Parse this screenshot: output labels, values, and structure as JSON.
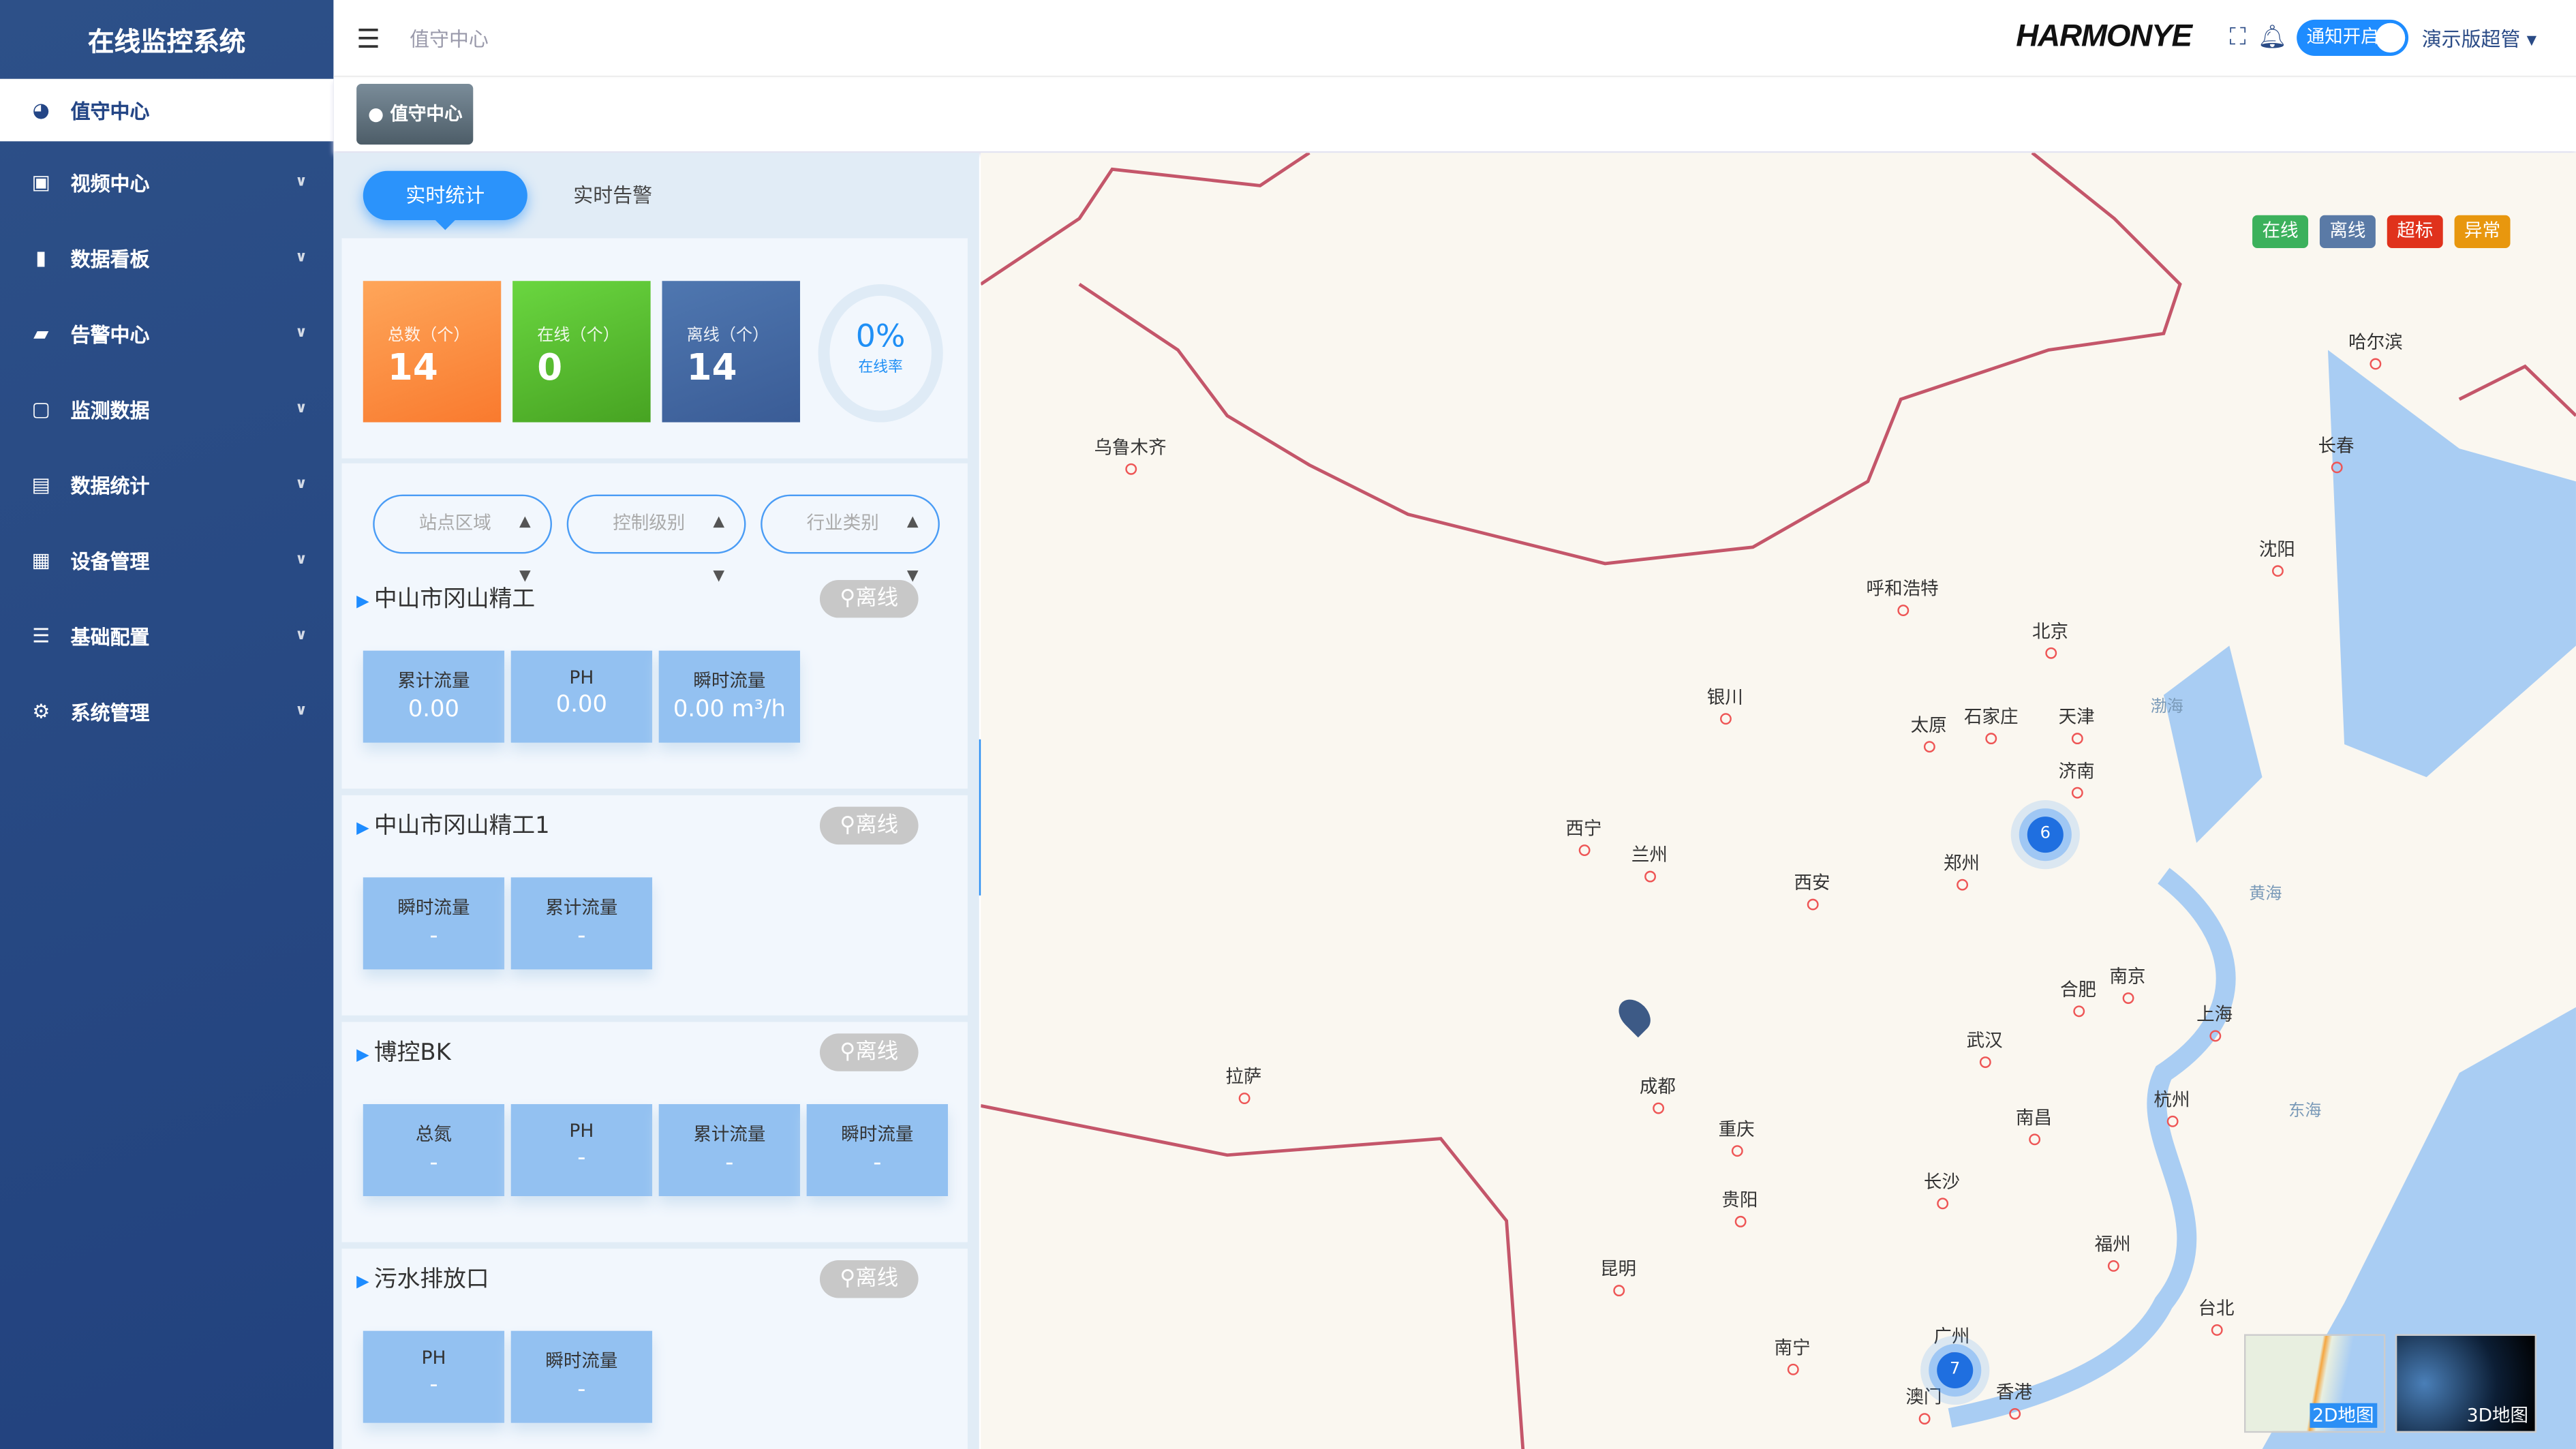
{
  "sidebar": {
    "title": "在线监控系统",
    "items": [
      {
        "label": "值守中心",
        "icon": "dashboard-icon"
      },
      {
        "label": "视频中心",
        "icon": "video-icon"
      },
      {
        "label": "数据看板",
        "icon": "bar-chart-icon"
      },
      {
        "label": "告警中心",
        "icon": "message-icon"
      },
      {
        "label": "监测数据",
        "icon": "monitor-icon"
      },
      {
        "label": "数据统计",
        "icon": "report-icon"
      },
      {
        "label": "设备管理",
        "icon": "grid-icon"
      },
      {
        "label": "基础配置",
        "icon": "sliders-icon"
      },
      {
        "label": "系统管理",
        "icon": "gear-icon"
      }
    ]
  },
  "header": {
    "breadcrumb": "值守中心",
    "brand": "HARMONYE",
    "notify_label": "通知开启",
    "notify_on": true,
    "user": "演示版超管"
  },
  "tags": {
    "active": "值守中心"
  },
  "panel": {
    "tabs": [
      "实时统计",
      "实时告警"
    ],
    "active_tab": 0,
    "stats": {
      "total_label": "总数（个）",
      "total": "14",
      "online_label": "在线（个）",
      "online": "0",
      "offline_label": "离线（个）",
      "offline": "14",
      "rate": "0%",
      "rate_label": "在线率"
    },
    "filters": [
      "站点区域",
      "控制级别",
      "行业类别"
    ],
    "sites": [
      {
        "name": "中山市冈山精工",
        "status": "离线",
        "metrics": [
          {
            "label": "累计流量",
            "value": "0.00"
          },
          {
            "label": "PH",
            "value": "0.00"
          },
          {
            "label": "瞬时流量",
            "value": "0.00 m³/h"
          }
        ]
      },
      {
        "name": "中山市冈山精工1",
        "status": "离线",
        "metrics": [
          {
            "label": "瞬时流量",
            "value": "-"
          },
          {
            "label": "累计流量",
            "value": "-"
          }
        ]
      },
      {
        "name": "博控BK",
        "status": "离线",
        "metrics": [
          {
            "label": "总氮",
            "value": "-"
          },
          {
            "label": "PH",
            "value": "-"
          },
          {
            "label": "累计流量",
            "value": "-"
          },
          {
            "label": "瞬时流量",
            "value": "-"
          }
        ]
      },
      {
        "name": "污水排放口",
        "status": "离线",
        "metrics": [
          {
            "label": "PH",
            "value": "-"
          },
          {
            "label": "瞬时流量",
            "value": "-"
          }
        ]
      }
    ]
  },
  "map": {
    "legend": [
      {
        "label": "在线",
        "color": "#3cb15c"
      },
      {
        "label": "离线",
        "color": "#5a7aa6"
      },
      {
        "label": "超标",
        "color": "#e0321c"
      },
      {
        "label": "异常",
        "color": "#e8970e"
      }
    ],
    "cities": [
      "乌鲁木齐",
      "哈尔滨",
      "长春",
      "沈阳",
      "呼和浩特",
      "北京",
      "天津",
      "石家庄",
      "太原",
      "银川",
      "济南",
      "西宁",
      "兰州",
      "郑州",
      "西安",
      "合肥",
      "南京",
      "上海",
      "拉萨",
      "成都",
      "武汉",
      "重庆",
      "杭州",
      "南昌",
      "长沙",
      "贵阳",
      "昆明",
      "福州",
      "台北",
      "南宁",
      "广州",
      "澳门",
      "香港"
    ],
    "seas": [
      "渤海",
      "黄海",
      "东海"
    ],
    "clusters": [
      "6",
      "7"
    ],
    "views": [
      "2D地图",
      "3D地图"
    ]
  }
}
